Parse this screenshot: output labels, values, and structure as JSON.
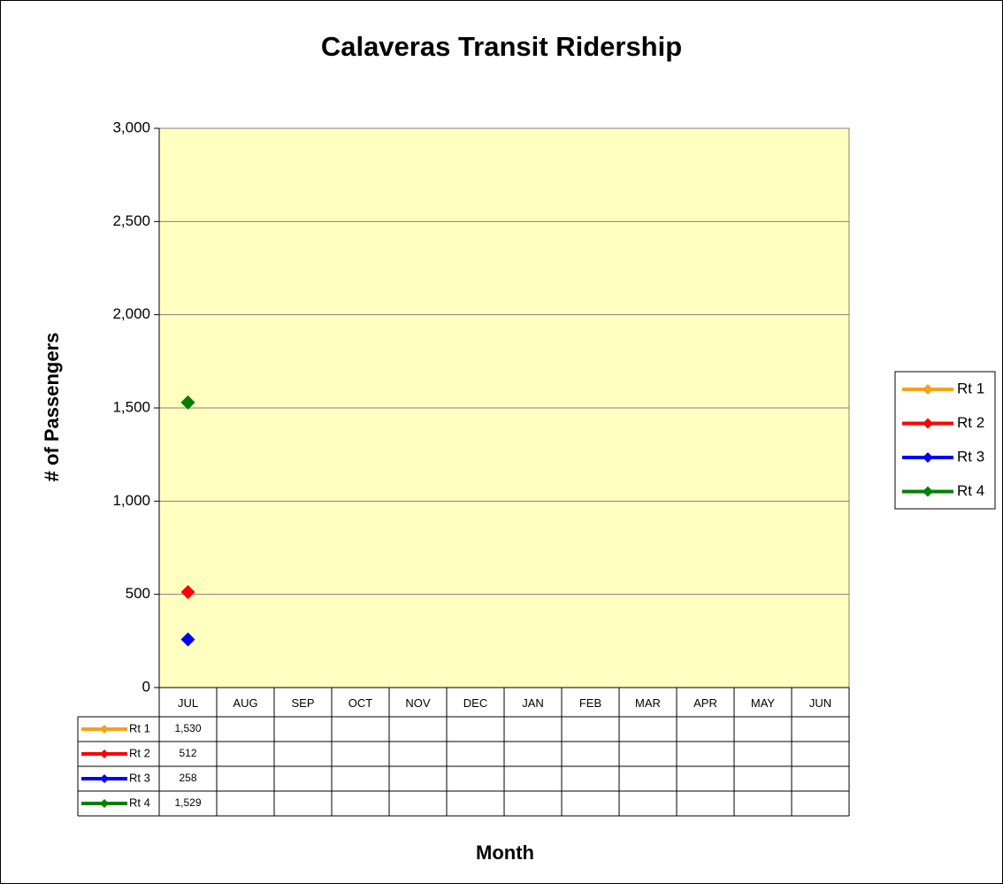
{
  "chart_data": {
    "type": "line",
    "title": "Calaveras Transit Ridership",
    "x_label": "Month",
    "y_label": "# of Passengers",
    "categories": [
      "JUL",
      "AUG",
      "SEP",
      "OCT",
      "NOV",
      "DEC",
      "JAN",
      "FEB",
      "MAR",
      "APR",
      "MAY",
      "JUN"
    ],
    "series": [
      {
        "name": "Rt 1",
        "color": "#f4a21d",
        "values": [
          1530,
          null,
          null,
          null,
          null,
          null,
          null,
          null,
          null,
          null,
          null,
          null
        ],
        "value_labels": [
          "1,530",
          null,
          null,
          null,
          null,
          null,
          null,
          null,
          null,
          null,
          null,
          null
        ]
      },
      {
        "name": "Rt 2",
        "color": "#ff0000",
        "values": [
          512,
          null,
          null,
          null,
          null,
          null,
          null,
          null,
          null,
          null,
          null,
          null
        ],
        "value_labels": [
          "512",
          null,
          null,
          null,
          null,
          null,
          null,
          null,
          null,
          null,
          null,
          null
        ]
      },
      {
        "name": "Rt 3",
        "color": "#0000ff",
        "values": [
          258,
          null,
          null,
          null,
          null,
          null,
          null,
          null,
          null,
          null,
          null,
          null
        ],
        "value_labels": [
          "258",
          null,
          null,
          null,
          null,
          null,
          null,
          null,
          null,
          null,
          null,
          null
        ]
      },
      {
        "name": "Rt 4",
        "color": "#008000",
        "values": [
          1529,
          null,
          null,
          null,
          null,
          null,
          null,
          null,
          null,
          null,
          null,
          null
        ],
        "value_labels": [
          "1,529",
          null,
          null,
          null,
          null,
          null,
          null,
          null,
          null,
          null,
          null,
          null
        ]
      }
    ],
    "ylim": [
      0,
      3000
    ],
    "yticks": [
      0,
      500,
      {
        "value": 1000,
        "label": "1,000"
      },
      {
        "value": 1500,
        "label": "1,500"
      },
      {
        "value": 2000,
        "label": "2,000"
      },
      {
        "value": 2500,
        "label": "2,500"
      },
      {
        "value": 3000,
        "label": "3,000"
      }
    ],
    "grid": true,
    "legend": "right",
    "plot_background": "#ffffc0"
  }
}
